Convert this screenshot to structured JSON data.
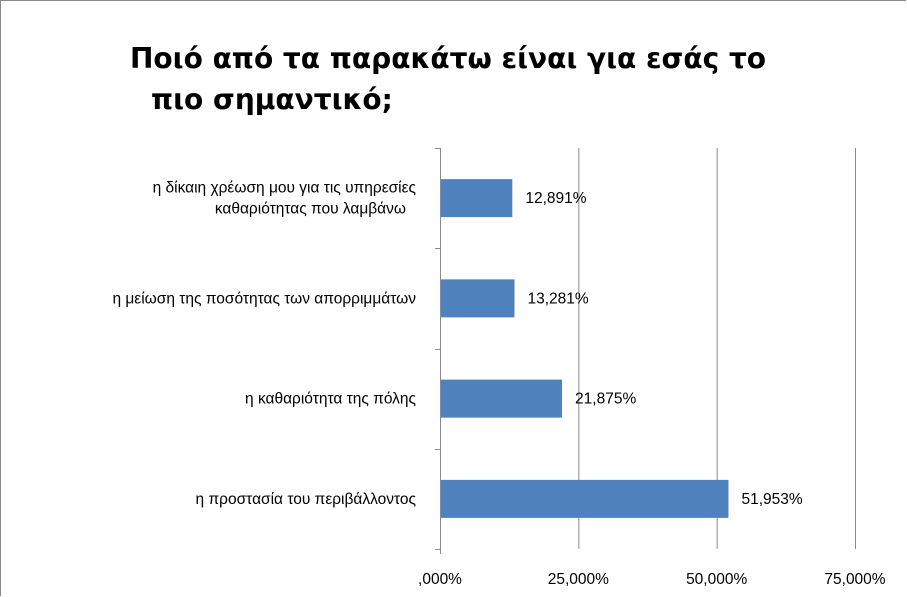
{
  "chart_data": {
    "type": "bar",
    "orientation": "horizontal",
    "title_lines": [
      "Ποιό από τα παρακάτω είναι για εσάς το",
      "πιο σημαντικό;"
    ],
    "categories": [
      {
        "lines": [
          "η δίκαιη χρέωση μου για τις υπηρεσίες",
          "καθαριότητας που λαμβάνω"
        ]
      },
      {
        "lines": [
          "η μείωση της ποσότητας των απορριμμάτων"
        ]
      },
      {
        "lines": [
          "η καθαριότητα της πόλης"
        ]
      },
      {
        "lines": [
          "η προστασία του περιβάλλοντος"
        ]
      }
    ],
    "values": [
      12.891,
      13.281,
      21.875,
      51.953
    ],
    "data_labels": [
      "12,891%",
      "13,281%",
      "21,875%",
      "51,953%"
    ],
    "x_ticks": [
      {
        "value": 0,
        "label": ",000%"
      },
      {
        "value": 25,
        "label": "25,000%"
      },
      {
        "value": 50,
        "label": "50,000%"
      },
      {
        "value": 75,
        "label": "75,000%"
      }
    ],
    "xlim": [
      0,
      75
    ],
    "grid": "vertical",
    "legend": "none",
    "bar_color": "#4f81bd"
  }
}
